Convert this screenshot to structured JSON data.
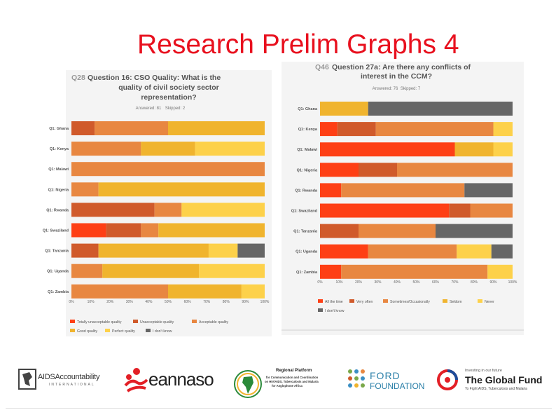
{
  "slide": {
    "title": "Research Prelim Graphs 4"
  },
  "colors": {
    "totally_unacceptable": "#fe3f15",
    "unacceptable": "#d05a2b",
    "acceptable": "#e88741",
    "good": "#f0b42e",
    "perfect": "#fdd14a",
    "dont_know": "#666666",
    "panel_bg": "#f4f4f4",
    "title_red": "#e8101e"
  },
  "chart_data": [
    {
      "id": "left",
      "type": "bar",
      "stacked": true,
      "orientation": "horizontal",
      "title_prefix": "Q28",
      "title_lines": [
        "Question 16: CSO Quality: What is the",
        "quality of civil society sector",
        "representation?"
      ],
      "answered": "Answered: 81",
      "skipped": "Skipped: 2",
      "categories": [
        "Q1: Ghana",
        "Q1: Kenya",
        "Q1: Malawi",
        "Q1: Nigeria",
        "Q1: Rwanda",
        "Q1: Swaziland",
        "Q1: Tanzania",
        "Q1: Uganda",
        "Q1: Zambia"
      ],
      "xticks": [
        "0%",
        "10%",
        "20%",
        "30%",
        "40%",
        "50%",
        "60%",
        "70%",
        "80%",
        "90%",
        "100%"
      ],
      "xlim": [
        0,
        100
      ],
      "series": [
        {
          "name": "Totally unacceptable quality",
          "color": "#fe3f15",
          "values": [
            0,
            0,
            0,
            0,
            0,
            18,
            0,
            0,
            0
          ]
        },
        {
          "name": "Unacceptable quality",
          "color": "#d05a2b",
          "values": [
            12,
            0,
            0,
            0,
            43,
            18,
            14,
            0,
            0
          ]
        },
        {
          "name": "Acceptable quality",
          "color": "#e88741",
          "values": [
            38,
            36,
            100,
            14,
            14,
            9,
            0,
            16,
            50
          ]
        },
        {
          "name": "Good quality",
          "color": "#f0b42e",
          "values": [
            50,
            28,
            0,
            86,
            0,
            55,
            57,
            50,
            38
          ]
        },
        {
          "name": "Perfect quality",
          "color": "#fdd14a",
          "values": [
            0,
            36,
            0,
            0,
            43,
            0,
            15,
            34,
            12
          ]
        },
        {
          "name": "I don't know",
          "color": "#666666",
          "values": [
            0,
            0,
            0,
            0,
            0,
            0,
            14,
            0,
            0
          ]
        }
      ]
    },
    {
      "id": "right",
      "type": "bar",
      "stacked": true,
      "orientation": "horizontal",
      "title_prefix": "Q46",
      "title_lines": [
        "Question 27a: Are there any conflicts of",
        "interest in the CCM?"
      ],
      "answered": "Answered: 76",
      "skipped": "Skipped: 7",
      "categories": [
        "Q1: Ghana",
        "Q1: Kenya",
        "Q1: Malawi",
        "Q1: Nigeria",
        "Q1: Rwanda",
        "Q1: Swaziland",
        "Q1: Tanzania",
        "Q1: Uganda",
        "Q1: Zambia"
      ],
      "xticks": [
        "0%",
        "10%",
        "20%",
        "30%",
        "40%",
        "50%",
        "60%",
        "70%",
        "80%",
        "90%",
        "100%"
      ],
      "xlim": [
        0,
        100
      ],
      "series": [
        {
          "name": "All the time",
          "color": "#fe3f15",
          "values": [
            0,
            9,
            70,
            20,
            11,
            67,
            0,
            25,
            11
          ]
        },
        {
          "name": "Very often",
          "color": "#d05a2b",
          "values": [
            0,
            20,
            0,
            20,
            0,
            11,
            20,
            0,
            0
          ]
        },
        {
          "name": "Sometimes/Occasionally",
          "color": "#e88741",
          "values": [
            0,
            61,
            0,
            60,
            64,
            22,
            40,
            46,
            76
          ]
        },
        {
          "name": "Seldom",
          "color": "#f0b42e",
          "values": [
            25,
            0,
            20,
            0,
            0,
            0,
            0,
            0,
            0
          ]
        },
        {
          "name": "Never",
          "color": "#fdd14a",
          "values": [
            0,
            10,
            10,
            0,
            0,
            0,
            0,
            18,
            13
          ]
        },
        {
          "name": "I don't know",
          "color": "#666666",
          "values": [
            75,
            0,
            0,
            0,
            25,
            0,
            40,
            11,
            0
          ]
        }
      ]
    }
  ],
  "logos": {
    "aids_accountability": "AIDSAccountability",
    "aids_sub": "INTERNATIONAL",
    "eannaso": "eannaso",
    "regional_platform_title": "Regional Platform",
    "regional_platform_lines": [
      "for Communication and Coordination",
      "on HIV/AIDS, Tuberculosis and Malaria",
      "for Anglophone Africa"
    ],
    "ford_line1": "FORD",
    "ford_line2": "FOUNDATION",
    "global_fund_top": "Investing in our future",
    "global_fund_name": "The Global Fund",
    "global_fund_sub": "To Fight AIDS, Tuberculosis and Malaria"
  }
}
